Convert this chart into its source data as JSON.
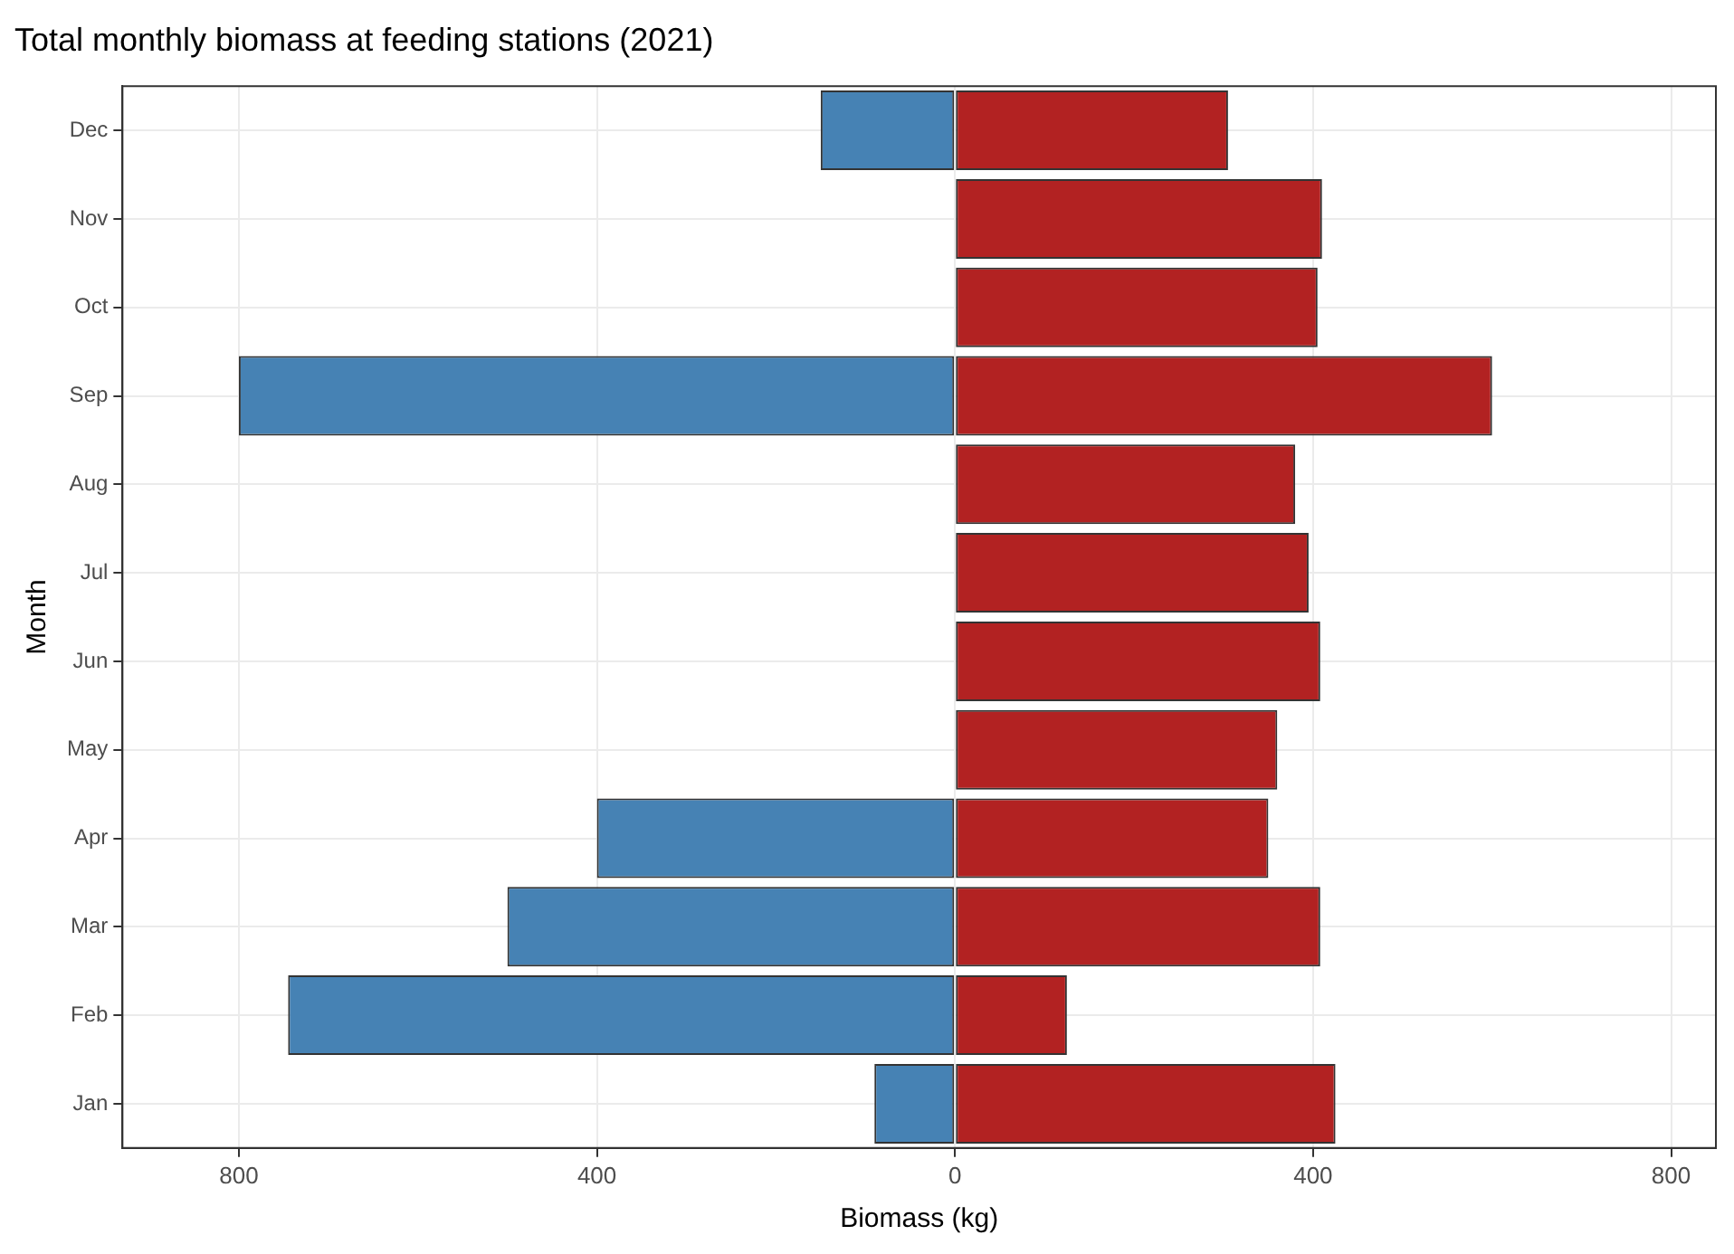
{
  "chart_data": {
    "type": "bar",
    "orientation": "horizontal",
    "stacked": true,
    "title": "Total monthly biomass at feeding stations (2021)",
    "xlabel": "Biomass (kg)",
    "ylabel": "Month",
    "categories": [
      "Dec",
      "Nov",
      "Oct",
      "Sep",
      "Aug",
      "Jul",
      "Jun",
      "May",
      "Apr",
      "Mar",
      "Feb",
      "Jan"
    ],
    "series": [
      {
        "color": "#4682b4",
        "values": [
          -150,
          null,
          null,
          -800,
          null,
          null,
          null,
          null,
          -400,
          -500,
          -745,
          -90
        ]
      },
      {
        "color": "#b22222",
        "values": [
          305,
          410,
          405,
          600,
          380,
          395,
          408,
          360,
          350,
          408,
          125,
          425
        ]
      }
    ],
    "xlim": [
      -930,
      850
    ],
    "xticks": [
      {
        "value": -800,
        "label": "800"
      },
      {
        "value": -400,
        "label": "400"
      },
      0,
      400,
      800
    ],
    "grid": true,
    "legend": false
  }
}
